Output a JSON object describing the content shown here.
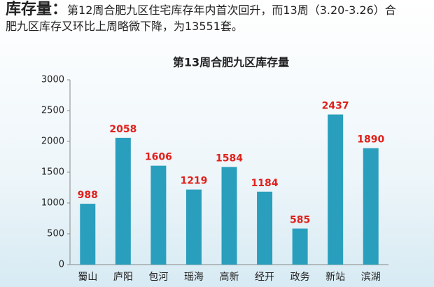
{
  "header": {
    "label": "库存量：",
    "text": "第12周合肥九区住宅库存年内首次回升，而13周（3.20-3.26）合肥九区库存又环比上周略微下降，为13551套。"
  },
  "chart_data": {
    "type": "bar",
    "title": "第13周合肥九区库存量",
    "categories": [
      "蜀山",
      "庐阳",
      "包河",
      "瑶海",
      "高新",
      "经开",
      "政务",
      "新站",
      "滨湖"
    ],
    "values": [
      988,
      2058,
      1606,
      1219,
      1584,
      1184,
      585,
      2437,
      1890
    ],
    "color": "#2a9fbd",
    "label_color": "#e0201b",
    "ylim": [
      0,
      3000
    ],
    "yticks": [
      0,
      500,
      1000,
      1500,
      2000,
      2500,
      3000
    ],
    "grid": false
  }
}
